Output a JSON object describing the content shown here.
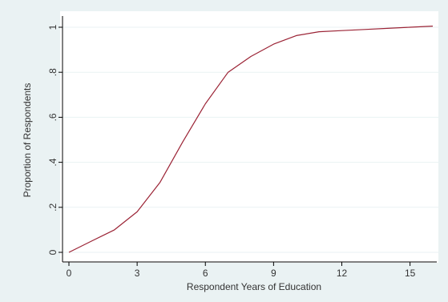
{
  "chart_data": {
    "type": "line",
    "xlabel": "Respondent Years of Education",
    "ylabel": "Proportion of Respondents",
    "xlim": [
      0,
      16
    ],
    "ylim": [
      0,
      1
    ],
    "x_ticks": [
      {
        "value": 0,
        "label": "0"
      },
      {
        "value": 3,
        "label": "3"
      },
      {
        "value": 6,
        "label": "6"
      },
      {
        "value": 9,
        "label": "9"
      },
      {
        "value": 12,
        "label": "12"
      },
      {
        "value": 15,
        "label": "15"
      }
    ],
    "y_ticks": [
      {
        "value": 0,
        "label": "0"
      },
      {
        "value": 0.2,
        "label": ".2"
      },
      {
        "value": 0.4,
        "label": ".4"
      },
      {
        "value": 0.6,
        "label": ".6"
      },
      {
        "value": 0.8,
        "label": ".8"
      },
      {
        "value": 1,
        "label": "1"
      }
    ],
    "grid": "horizontal",
    "legend": "none",
    "series": [
      {
        "x": [
          0,
          1,
          2,
          3,
          4,
          5,
          6,
          7,
          8,
          9,
          10,
          11,
          12,
          13,
          14,
          15,
          16
        ],
        "values": [
          0,
          0.05,
          0.1,
          0.18,
          0.31,
          0.49,
          0.66,
          0.8,
          0.87,
          0.925,
          0.963,
          0.98,
          0.985,
          0.99,
          0.995,
          1.0,
          1.005
        ],
        "color": "#9b2335"
      }
    ],
    "colors": {
      "outer_background": "#eaf2f3",
      "plot_background": "#ffffff",
      "gridline": "#eaf2f3",
      "axis": "#000000",
      "text": "#333333"
    }
  }
}
